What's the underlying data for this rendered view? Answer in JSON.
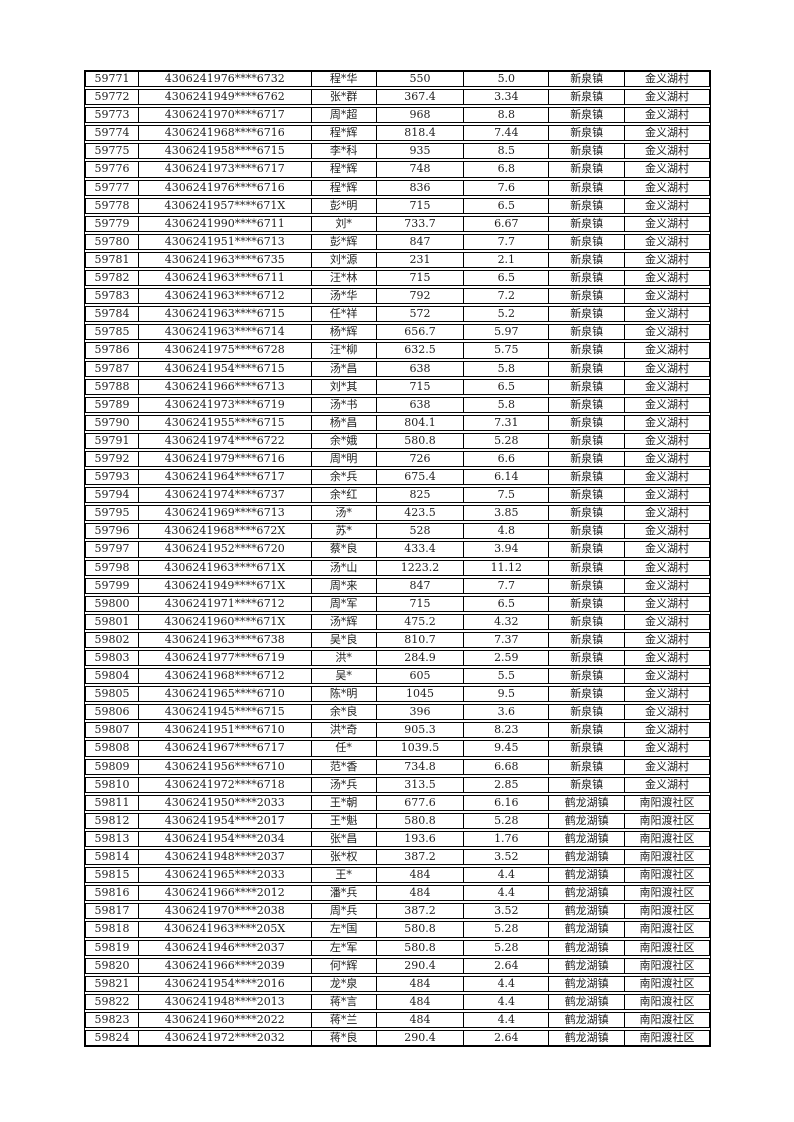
{
  "page": {
    "background_color": "#ffffff",
    "text_color": "#1e1e1e",
    "border_color": "#000000"
  },
  "table": {
    "rows": [
      [
        "59771",
        "4306241976****6732",
        "程*华",
        "550",
        "5.0",
        "新泉镇",
        "金义湖村"
      ],
      [
        "59772",
        "4306241949****6762",
        "张*群",
        "367.4",
        "3.34",
        "新泉镇",
        "金义湖村"
      ],
      [
        "59773",
        "4306241970****6717",
        "周*超",
        "968",
        "8.8",
        "新泉镇",
        "金义湖村"
      ],
      [
        "59774",
        "4306241968****6716",
        "程*辉",
        "818.4",
        "7.44",
        "新泉镇",
        "金义湖村"
      ],
      [
        "59775",
        "4306241958****6715",
        "李*科",
        "935",
        "8.5",
        "新泉镇",
        "金义湖村"
      ],
      [
        "59776",
        "4306241973****6717",
        "程*辉",
        "748",
        "6.8",
        "新泉镇",
        "金义湖村"
      ],
      [
        "59777",
        "4306241976****6716",
        "程*辉",
        "836",
        "7.6",
        "新泉镇",
        "金义湖村"
      ],
      [
        "59778",
        "4306241957****671X",
        "彭*明",
        "715",
        "6.5",
        "新泉镇",
        "金义湖村"
      ],
      [
        "59779",
        "4306241990****6711",
        "刘*",
        "733.7",
        "6.67",
        "新泉镇",
        "金义湖村"
      ],
      [
        "59780",
        "4306241951****6713",
        "彭*辉",
        "847",
        "7.7",
        "新泉镇",
        "金义湖村"
      ],
      [
        "59781",
        "4306241963****6735",
        "刘*源",
        "231",
        "2.1",
        "新泉镇",
        "金义湖村"
      ],
      [
        "59782",
        "4306241963****6711",
        "汪*林",
        "715",
        "6.5",
        "新泉镇",
        "金义湖村"
      ],
      [
        "59783",
        "4306241963****6712",
        "汤*华",
        "792",
        "7.2",
        "新泉镇",
        "金义湖村"
      ],
      [
        "59784",
        "4306241963****6715",
        "任*祥",
        "572",
        "5.2",
        "新泉镇",
        "金义湖村"
      ],
      [
        "59785",
        "4306241963****6714",
        "杨*辉",
        "656.7",
        "5.97",
        "新泉镇",
        "金义湖村"
      ],
      [
        "59786",
        "4306241975****6728",
        "汪*柳",
        "632.5",
        "5.75",
        "新泉镇",
        "金义湖村"
      ],
      [
        "59787",
        "4306241954****6715",
        "汤*昌",
        "638",
        "5.8",
        "新泉镇",
        "金义湖村"
      ],
      [
        "59788",
        "4306241966****6713",
        "刘*其",
        "715",
        "6.5",
        "新泉镇",
        "金义湖村"
      ],
      [
        "59789",
        "4306241973****6719",
        "汤*书",
        "638",
        "5.8",
        "新泉镇",
        "金义湖村"
      ],
      [
        "59790",
        "4306241955****6715",
        "杨*昌",
        "804.1",
        "7.31",
        "新泉镇",
        "金义湖村"
      ],
      [
        "59791",
        "4306241974****6722",
        "余*娥",
        "580.8",
        "5.28",
        "新泉镇",
        "金义湖村"
      ],
      [
        "59792",
        "4306241979****6716",
        "周*明",
        "726",
        "6.6",
        "新泉镇",
        "金义湖村"
      ],
      [
        "59793",
        "4306241964****6717",
        "余*兵",
        "675.4",
        "6.14",
        "新泉镇",
        "金义湖村"
      ],
      [
        "59794",
        "4306241974****6737",
        "余*红",
        "825",
        "7.5",
        "新泉镇",
        "金义湖村"
      ],
      [
        "59795",
        "4306241969****6713",
        "汤*",
        "423.5",
        "3.85",
        "新泉镇",
        "金义湖村"
      ],
      [
        "59796",
        "4306241968****672X",
        "苏*",
        "528",
        "4.8",
        "新泉镇",
        "金义湖村"
      ],
      [
        "59797",
        "4306241952****6720",
        "蔡*良",
        "433.4",
        "3.94",
        "新泉镇",
        "金义湖村"
      ],
      [
        "59798",
        "4306241963****671X",
        "汤*山",
        "1223.2",
        "11.12",
        "新泉镇",
        "金义湖村"
      ],
      [
        "59799",
        "4306241949****671X",
        "周*来",
        "847",
        "7.7",
        "新泉镇",
        "金义湖村"
      ],
      [
        "59800",
        "4306241971****6712",
        "周*军",
        "715",
        "6.5",
        "新泉镇",
        "金义湖村"
      ],
      [
        "59801",
        "4306241960****671X",
        "汤*辉",
        "475.2",
        "4.32",
        "新泉镇",
        "金义湖村"
      ],
      [
        "59802",
        "4306241963****6738",
        "吴*良",
        "810.7",
        "7.37",
        "新泉镇",
        "金义湖村"
      ],
      [
        "59803",
        "4306241977****6719",
        "洪*",
        "284.9",
        "2.59",
        "新泉镇",
        "金义湖村"
      ],
      [
        "59804",
        "4306241968****6712",
        "吴*",
        "605",
        "5.5",
        "新泉镇",
        "金义湖村"
      ],
      [
        "59805",
        "4306241965****6710",
        "陈*明",
        "1045",
        "9.5",
        "新泉镇",
        "金义湖村"
      ],
      [
        "59806",
        "4306241945****6715",
        "余*良",
        "396",
        "3.6",
        "新泉镇",
        "金义湖村"
      ],
      [
        "59807",
        "4306241951****6710",
        "洪*奇",
        "905.3",
        "8.23",
        "新泉镇",
        "金义湖村"
      ],
      [
        "59808",
        "4306241967****6717",
        "任*",
        "1039.5",
        "9.45",
        "新泉镇",
        "金义湖村"
      ],
      [
        "59809",
        "4306241956****6710",
        "范*香",
        "734.8",
        "6.68",
        "新泉镇",
        "金义湖村"
      ],
      [
        "59810",
        "4306241972****6718",
        "汤*兵",
        "313.5",
        "2.85",
        "新泉镇",
        "金义湖村"
      ],
      [
        "59811",
        "4306241950****2033",
        "王*朝",
        "677.6",
        "6.16",
        "鹤龙湖镇",
        "南阳渡社区"
      ],
      [
        "59812",
        "4306241954****2017",
        "王*魁",
        "580.8",
        "5.28",
        "鹤龙湖镇",
        "南阳渡社区"
      ],
      [
        "59813",
        "4306241954****2034",
        "张*昌",
        "193.6",
        "1.76",
        "鹤龙湖镇",
        "南阳渡社区"
      ],
      [
        "59814",
        "4306241948****2037",
        "张*权",
        "387.2",
        "3.52",
        "鹤龙湖镇",
        "南阳渡社区"
      ],
      [
        "59815",
        "4306241965****2033",
        "王*",
        "484",
        "4.4",
        "鹤龙湖镇",
        "南阳渡社区"
      ],
      [
        "59816",
        "4306241966****2012",
        "潘*兵",
        "484",
        "4.4",
        "鹤龙湖镇",
        "南阳渡社区"
      ],
      [
        "59817",
        "4306241970****2038",
        "周*兵",
        "387.2",
        "3.52",
        "鹤龙湖镇",
        "南阳渡社区"
      ],
      [
        "59818",
        "4306241963****205X",
        "左*国",
        "580.8",
        "5.28",
        "鹤龙湖镇",
        "南阳渡社区"
      ],
      [
        "59819",
        "4306241946****2037",
        "左*军",
        "580.8",
        "5.28",
        "鹤龙湖镇",
        "南阳渡社区"
      ],
      [
        "59820",
        "4306241966****2039",
        "何*辉",
        "290.4",
        "2.64",
        "鹤龙湖镇",
        "南阳渡社区"
      ],
      [
        "59821",
        "4306241954****2016",
        "龙*泉",
        "484",
        "4.4",
        "鹤龙湖镇",
        "南阳渡社区"
      ],
      [
        "59822",
        "4306241948****2013",
        "蒋*言",
        "484",
        "4.4",
        "鹤龙湖镇",
        "南阳渡社区"
      ],
      [
        "59823",
        "4306241960****2022",
        "蒋*兰",
        "484",
        "4.4",
        "鹤龙湖镇",
        "南阳渡社区"
      ],
      [
        "59824",
        "4306241972****2032",
        "蒋*良",
        "290.4",
        "2.64",
        "鹤龙湖镇",
        "南阳渡社区"
      ]
    ]
  }
}
